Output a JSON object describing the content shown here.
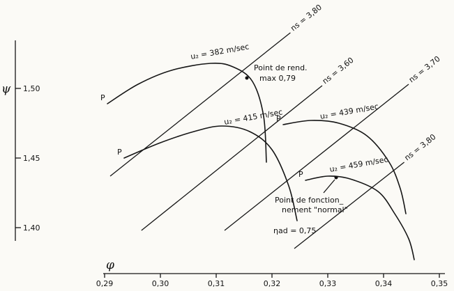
{
  "chart_data": {
    "type": "line",
    "title": "",
    "xlabel": "φ",
    "ylabel": "ψ",
    "xlim": [
      0.29,
      0.35
    ],
    "ylim": [
      1.4,
      1.55
    ],
    "x_ticks": [
      "0,29",
      "0,30",
      "0,31",
      "0,32",
      "0,33",
      "0,34",
      "0,35"
    ],
    "y_ticks": [
      "1,40",
      "1,45",
      "1,50"
    ],
    "curve_marker": "P",
    "curves": [
      {
        "label": "u₂ = 382 m/sec",
        "points": [
          [
            0.2905,
            1.489
          ],
          [
            0.296,
            1.503
          ],
          [
            0.302,
            1.513
          ],
          [
            0.309,
            1.518
          ],
          [
            0.313,
            1.5155
          ],
          [
            0.3165,
            1.505
          ],
          [
            0.3185,
            1.48
          ],
          [
            0.319,
            1.447
          ]
        ]
      },
      {
        "label": "u₂ = 415 m/sec",
        "points": [
          [
            0.2935,
            1.45
          ],
          [
            0.3,
            1.461
          ],
          [
            0.306,
            1.469
          ],
          [
            0.311,
            1.473
          ],
          [
            0.316,
            1.469
          ],
          [
            0.32,
            1.456
          ],
          [
            0.323,
            1.43
          ],
          [
            0.3245,
            1.405
          ]
        ]
      },
      {
        "label": "u₂ = 439 m/sec",
        "points": [
          [
            0.322,
            1.474
          ],
          [
            0.327,
            1.477
          ],
          [
            0.332,
            1.475
          ],
          [
            0.337,
            1.466
          ],
          [
            0.341,
            1.447
          ],
          [
            0.343,
            1.428
          ],
          [
            0.344,
            1.41
          ]
        ]
      },
      {
        "label": "u₂ = 459 m/sec",
        "points": [
          [
            0.326,
            1.434
          ],
          [
            0.33,
            1.437
          ],
          [
            0.334,
            1.435
          ],
          [
            0.339,
            1.426
          ],
          [
            0.342,
            1.41
          ],
          [
            0.3445,
            1.392
          ],
          [
            0.3455,
            1.377
          ]
        ]
      }
    ],
    "ns_lines": [
      {
        "label": "ns = 3,80",
        "points": [
          [
            0.291,
            1.437
          ],
          [
            0.3233,
            1.54
          ]
        ]
      },
      {
        "label": "ns = 3,60",
        "points": [
          [
            0.2966,
            1.398
          ],
          [
            0.329,
            1.502
          ]
        ]
      },
      {
        "label": "ns = 3,70",
        "points": [
          [
            0.3115,
            1.398
          ],
          [
            0.3445,
            1.503
          ]
        ]
      },
      {
        "label": "ns = 3,80",
        "points": [
          [
            0.324,
            1.385
          ],
          [
            0.3437,
            1.447
          ]
        ]
      }
    ],
    "annotations": {
      "max_eff_point": {
        "x": 0.3155,
        "y": 1.5075,
        "text_lines": [
          "Point de rend.",
          "max 0,79"
        ]
      },
      "normal_point": {
        "x": 0.3315,
        "y": 1.436,
        "text_lines": [
          "Point de fonction_",
          "nement \"normal\""
        ]
      },
      "eta": "ηad = 0,75"
    }
  }
}
